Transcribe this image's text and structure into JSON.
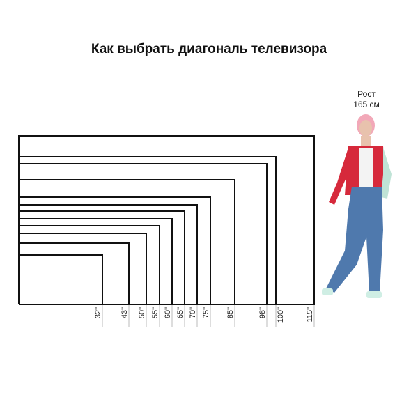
{
  "title": "Как выбрать диагональ телевизора",
  "person": {
    "label_line1": "Рост",
    "label_line2": "165 см",
    "colors": {
      "jacket": "#d6293b",
      "jeans": "#4f79ad",
      "hair": "#f2a8b8",
      "sleeves": "#bfe3d6"
    }
  },
  "unit_suffix": "\"",
  "diagonals": [
    32,
    43,
    50,
    55,
    60,
    65,
    70,
    75,
    85,
    98,
    100,
    115
  ],
  "aspect_ratio": "16:9"
}
